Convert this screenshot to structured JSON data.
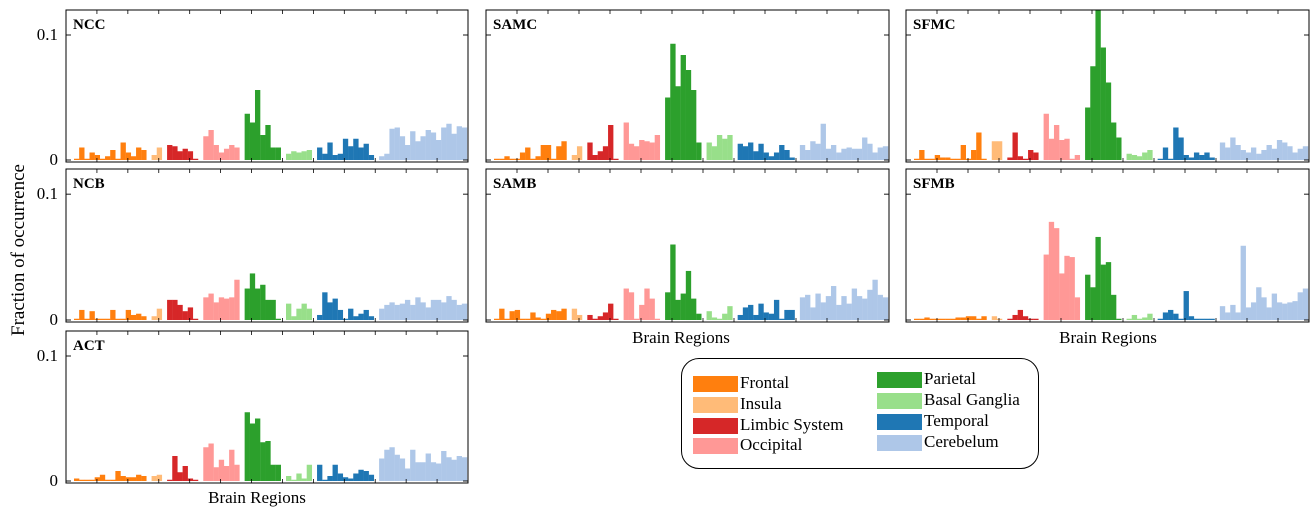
{
  "chart_data": {
    "type": "bar",
    "ylabel": "Fraction of occurrence",
    "xlabel": "Brain Regions",
    "ylim": [
      0,
      0.12
    ],
    "yticks": [
      {
        "value": 0,
        "label": "0"
      },
      {
        "value": 0.1,
        "label": "0.1"
      }
    ],
    "groups": [
      {
        "name": "Frontal",
        "color": "#ff7f0e"
      },
      {
        "name": "Insula",
        "color": "#ffbb78"
      },
      {
        "name": "Limbic System",
        "color": "#d62728"
      },
      {
        "name": "Occipital",
        "color": "#ff9896"
      },
      {
        "name": "Parietal",
        "color": "#2ca02c"
      },
      {
        "name": "Basal Ganglia",
        "color": "#98df8a"
      },
      {
        "name": "Temporal",
        "color": "#1f77b4"
      },
      {
        "name": "Cerebelum",
        "color": "#aec7e8"
      }
    ],
    "panels": [
      {
        "label": "NCC",
        "values": [
          [
            0.001,
            0.01,
            0.001,
            0.006,
            0.004,
            0.001,
            0.003,
            0.008,
            0.001,
            0.014,
            0.006,
            0.003,
            0.01,
            0.008
          ],
          [
            0.004,
            0.01
          ],
          [
            0.012,
            0.011,
            0.007,
            0.009,
            0.007,
            0.001
          ],
          [
            0.019,
            0.024,
            0.012,
            0.006,
            0.009,
            0.012,
            0.01
          ],
          [
            0.037,
            0.03,
            0.056,
            0.02,
            0.028,
            0.01,
            0.01
          ],
          [
            0.005,
            0.007,
            0.006,
            0.007,
            0.008
          ],
          [
            0.01,
            0.005,
            0.014,
            0.004,
            0.005,
            0.017,
            0.011,
            0.017,
            0.01,
            0.013,
            0.004
          ],
          [
            0.003,
            0.005,
            0.025,
            0.026,
            0.019,
            0.012,
            0.023,
            0.015,
            0.019,
            0.024,
            0.022,
            0.016,
            0.026,
            0.029,
            0.021,
            0.027,
            0.026
          ]
        ]
      },
      {
        "label": "SAMC",
        "values": [
          [
            0.001,
            0.001,
            0.003,
            0.001,
            0.001,
            0.006,
            0.01,
            0.001,
            0.003,
            0.012,
            0.012,
            0.001,
            0.011,
            0.015
          ],
          [
            0.004,
            0.011
          ],
          [
            0.014,
            0.004,
            0.007,
            0.011,
            0.028,
            0.001
          ],
          [
            0.03,
            0.013,
            0.011,
            0.016,
            0.015,
            0.014,
            0.02
          ],
          [
            0.05,
            0.093,
            0.059,
            0.084,
            0.072,
            0.056,
            0.014
          ],
          [
            0.014,
            0.011,
            0.02,
            0.017,
            0.02
          ],
          [
            0.013,
            0.011,
            0.014,
            0.007,
            0.013,
            0.006,
            0.003,
            0.006,
            0.012,
            0.008,
            0.002
          ],
          [
            0.012,
            0.008,
            0.015,
            0.013,
            0.029,
            0.009,
            0.012,
            0.006,
            0.009,
            0.01,
            0.009,
            0.009,
            0.018,
            0.013,
            0.006,
            0.01,
            0.011
          ]
        ]
      },
      {
        "label": "SFMC",
        "values": [
          [
            0.001,
            0.008,
            0.001,
            0.001,
            0.004,
            0.002,
            0.002,
            0.001,
            0.001,
            0.012,
            0.001,
            0.008,
            0.022,
            0.001
          ],
          [
            0.015,
            0.015
          ],
          [
            0.002,
            0.022,
            0.003,
            0.001,
            0.008,
            0.006
          ],
          [
            0.037,
            0.017,
            0.028,
            0.016,
            0.017,
            0.001,
            0.004
          ],
          [
            0.042,
            0.075,
            0.12,
            0.09,
            0.062,
            0.03,
            0.018
          ],
          [
            0.005,
            0.004,
            0.003,
            0.006,
            0.008
          ],
          [
            0.001,
            0.01,
            0.001,
            0.026,
            0.018,
            0.004,
            0.002,
            0.006,
            0.004,
            0.006,
            0.002
          ],
          [
            0.014,
            0.01,
            0.018,
            0.012,
            0.008,
            0.006,
            0.01,
            0.005,
            0.008,
            0.012,
            0.009,
            0.016,
            0.014,
            0.011,
            0.006,
            0.009,
            0.011
          ]
        ]
      },
      {
        "label": "NCB",
        "values": [
          [
            0.001,
            0.008,
            0.001,
            0.007,
            0.001,
            0.001,
            0.001,
            0.008,
            0.001,
            0.001,
            0.008,
            0.004,
            0.005,
            0.003
          ],
          [
            0.003,
            0.009
          ],
          [
            0.016,
            0.016,
            0.012,
            0.007,
            0.01,
            0.001
          ],
          [
            0.018,
            0.021,
            0.014,
            0.018,
            0.017,
            0.018,
            0.032
          ],
          [
            0.025,
            0.037,
            0.025,
            0.028,
            0.016,
            0.016,
            0.001
          ],
          [
            0.013,
            0.003,
            0.009,
            0.013,
            0.009
          ],
          [
            0.004,
            0.022,
            0.014,
            0.017,
            0.008,
            0.001,
            0.009,
            0.003,
            0.005,
            0.008,
            0.003
          ],
          [
            0.009,
            0.012,
            0.014,
            0.012,
            0.013,
            0.016,
            0.012,
            0.018,
            0.014,
            0.01,
            0.016,
            0.016,
            0.014,
            0.019,
            0.016,
            0.012,
            0.013
          ]
        ]
      },
      {
        "label": "SAMB",
        "values": [
          [
            0.001,
            0.009,
            0.001,
            0.007,
            0.008,
            0.001,
            0.001,
            0.006,
            0.002,
            0.001,
            0.005,
            0.008,
            0.007,
            0.009
          ],
          [
            0.009,
            0.004
          ],
          [
            0.004,
            0.001,
            0.003,
            0.006,
            0.013,
            0.001
          ],
          [
            0.025,
            0.022,
            0.001,
            0.012,
            0.025,
            0.017,
            0.001
          ],
          [
            0.022,
            0.06,
            0.016,
            0.021,
            0.039,
            0.017,
            0.005
          ],
          [
            0.007,
            0.002,
            0.001,
            0.005,
            0.011
          ],
          [
            0.004,
            0.01,
            0.012,
            0.004,
            0.013,
            0.006,
            0.005,
            0.016,
            0.001,
            0.008,
            0.008
          ],
          [
            0.018,
            0.02,
            0.01,
            0.021,
            0.014,
            0.019,
            0.027,
            0.012,
            0.019,
            0.013,
            0.025,
            0.019,
            0.017,
            0.024,
            0.032,
            0.02,
            0.018
          ]
        ]
      },
      {
        "label": "SFMB",
        "values": [
          [
            0.001,
            0.001,
            0.002,
            0.001,
            0.001,
            0.001,
            0.001,
            0.001,
            0.002,
            0.002,
            0.003,
            0.003,
            0.001,
            0.003
          ],
          [
            0.003,
            0.001
          ],
          [
            0.001,
            0.004,
            0.008,
            0.003,
            0.001,
            0.001
          ],
          [
            0.052,
            0.078,
            0.073,
            0.037,
            0.051,
            0.05,
            0.018
          ],
          [
            0.036,
            0.026,
            0.066,
            0.044,
            0.046,
            0.02,
            0.001
          ],
          [
            0.001,
            0.004,
            0.001,
            0.002,
            0.005
          ],
          [
            0.001,
            0.006,
            0.008,
            0.005,
            0.001,
            0.023,
            0.003,
            0.001,
            0.001,
            0.001,
            0.001
          ],
          [
            0.011,
            0.006,
            0.012,
            0.006,
            0.059,
            0.01,
            0.014,
            0.026,
            0.018,
            0.01,
            0.021,
            0.014,
            0.013,
            0.014,
            0.015,
            0.022,
            0.025
          ]
        ]
      },
      {
        "label": "ACT",
        "values": [
          [
            0.002,
            0.001,
            0.001,
            0.001,
            0.003,
            0.005,
            0.001,
            0.001,
            0.008,
            0.004,
            0.003,
            0.003,
            0.005,
            0.004
          ],
          [
            0.004,
            0.005
          ],
          [
            0.001,
            0.02,
            0.007,
            0.012,
            0.002,
            0.001
          ],
          [
            0.027,
            0.03,
            0.011,
            0.017,
            0.012,
            0.025,
            0.013
          ],
          [
            0.055,
            0.046,
            0.05,
            0.031,
            0.032,
            0.013,
            0.013
          ],
          [
            0.004,
            0.001,
            0.006,
            0.002,
            0.013
          ],
          [
            0.013,
            0.001,
            0.004,
            0.013,
            0.006,
            0.003,
            0.002,
            0.006,
            0.009,
            0.008,
            0.005
          ],
          [
            0.018,
            0.025,
            0.027,
            0.021,
            0.018,
            0.01,
            0.025,
            0.015,
            0.015,
            0.022,
            0.015,
            0.014,
            0.024,
            0.019,
            0.017,
            0.02,
            0.019
          ]
        ]
      }
    ]
  }
}
